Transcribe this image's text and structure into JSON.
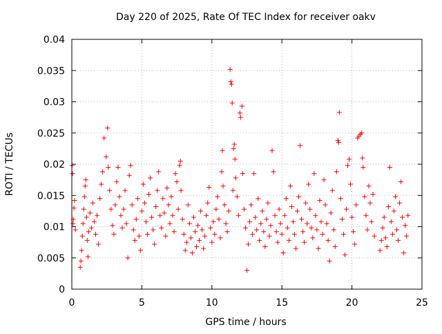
{
  "chart_data": {
    "type": "scatter",
    "title": "Day 220 of 2025, Rate Of TEC Index for receiver oakv",
    "xlabel": "GPS time / hours",
    "ylabel": "ROTI / TECUs",
    "xlim": [
      0,
      25
    ],
    "ylim": [
      0,
      0.04
    ],
    "x_ticks": [
      "0",
      "5",
      "10",
      "15",
      "20",
      "25"
    ],
    "y_ticks": [
      "0",
      "0.005",
      "0.01",
      "0.015",
      "0.02",
      "0.025",
      "0.03",
      "0.035",
      "0.04"
    ],
    "x_tick_values": [
      0,
      5,
      10,
      15,
      20,
      25
    ],
    "y_tick_values": [
      0,
      0.005,
      0.01,
      0.015,
      0.02,
      0.025,
      0.03,
      0.035,
      0.04
    ],
    "grid": true,
    "marker": "+",
    "marker_color": "#ff0000",
    "series": [
      {
        "points": [
          [
            0.02,
            0.0198
          ],
          [
            0.05,
            0.0185
          ],
          [
            0.08,
            0.0105
          ],
          [
            0.1,
            0.0112
          ],
          [
            0.15,
            0.013
          ],
          [
            0.2,
            0.0142
          ],
          [
            0.25,
            0.0095
          ],
          [
            0.6,
            0.0035
          ],
          [
            0.65,
            0.0045
          ],
          [
            0.7,
            0.0062
          ],
          [
            0.75,
            0.0085
          ],
          [
            0.8,
            0.0105
          ],
          [
            0.85,
            0.0128
          ],
          [
            0.9,
            0.0148
          ],
          [
            0.95,
            0.0165
          ],
          [
            1.0,
            0.0175
          ],
          [
            1.05,
            0.0115
          ],
          [
            1.1,
            0.0078
          ],
          [
            1.15,
            0.0052
          ],
          [
            1.2,
            0.0092
          ],
          [
            1.3,
            0.0122
          ],
          [
            1.4,
            0.0098
          ],
          [
            1.5,
            0.0138
          ],
          [
            1.6,
            0.0108
          ],
          [
            1.7,
            0.0088
          ],
          [
            1.8,
            0.0118
          ],
          [
            1.9,
            0.0072
          ],
          [
            2.0,
            0.0145
          ],
          [
            2.1,
            0.0168
          ],
          [
            2.2,
            0.0188
          ],
          [
            2.3,
            0.0242
          ],
          [
            2.45,
            0.0212
          ],
          [
            2.55,
            0.0258
          ],
          [
            2.6,
            0.0195
          ],
          [
            2.7,
            0.0158
          ],
          [
            2.8,
            0.0128
          ],
          [
            2.9,
            0.0102
          ],
          [
            3.0,
            0.0088
          ],
          [
            3.1,
            0.0135
          ],
          [
            3.2,
            0.0172
          ],
          [
            3.3,
            0.0195
          ],
          [
            3.4,
            0.0148
          ],
          [
            3.5,
            0.0118
          ],
          [
            3.6,
            0.0098
          ],
          [
            3.7,
            0.0128
          ],
          [
            3.8,
            0.0158
          ],
          [
            3.9,
            0.0105
          ],
          [
            4.0,
            0.005
          ],
          [
            4.1,
            0.0182
          ],
          [
            4.2,
            0.0198
          ],
          [
            4.3,
            0.0135
          ],
          [
            4.4,
            0.0095
          ],
          [
            4.5,
            0.0078
          ],
          [
            4.6,
            0.0112
          ],
          [
            4.7,
            0.0145
          ],
          [
            4.8,
            0.0085
          ],
          [
            4.9,
            0.0062
          ],
          [
            5.0,
            0.0125
          ],
          [
            5.1,
            0.0168
          ],
          [
            5.2,
            0.0138
          ],
          [
            5.3,
            0.0108
          ],
          [
            5.4,
            0.0088
          ],
          [
            5.5,
            0.0152
          ],
          [
            5.6,
            0.0178
          ],
          [
            5.7,
            0.0115
          ],
          [
            5.8,
            0.0095
          ],
          [
            5.9,
            0.0072
          ],
          [
            6.0,
            0.0132
          ],
          [
            6.1,
            0.0158
          ],
          [
            6.2,
            0.0188
          ],
          [
            6.3,
            0.0118
          ],
          [
            6.4,
            0.0098
          ],
          [
            6.5,
            0.0145
          ],
          [
            6.6,
            0.0122
          ],
          [
            6.7,
            0.0085
          ],
          [
            6.8,
            0.0162
          ],
          [
            6.9,
            0.0135
          ],
          [
            7.0,
            0.0105
          ],
          [
            7.1,
            0.0148
          ],
          [
            7.2,
            0.0118
          ],
          [
            7.3,
            0.0092
          ],
          [
            7.4,
            0.0185
          ],
          [
            7.5,
            0.0172
          ],
          [
            7.6,
            0.0128
          ],
          [
            7.7,
            0.0198
          ],
          [
            7.75,
            0.0205
          ],
          [
            7.8,
            0.0158
          ],
          [
            7.9,
            0.0112
          ],
          [
            8.0,
            0.0088
          ],
          [
            8.1,
            0.0062
          ],
          [
            8.2,
            0.0075
          ],
          [
            8.3,
            0.0135
          ],
          [
            8.4,
            0.0105
          ],
          [
            8.5,
            0.0082
          ],
          [
            8.6,
            0.0058
          ],
          [
            8.7,
            0.0115
          ],
          [
            8.8,
            0.0092
          ],
          [
            8.9,
            0.0068
          ],
          [
            9.0,
            0.0102
          ],
          [
            9.1,
            0.0078
          ],
          [
            9.2,
            0.0125
          ],
          [
            9.3,
            0.0095
          ],
          [
            9.4,
            0.0065
          ],
          [
            9.5,
            0.0085
          ],
          [
            9.6,
            0.0118
          ],
          [
            9.7,
            0.0138
          ],
          [
            9.8,
            0.0163
          ],
          [
            9.9,
            0.0098
          ],
          [
            10.0,
            0.0075
          ],
          [
            10.1,
            0.0108
          ],
          [
            10.2,
            0.0088
          ],
          [
            10.3,
            0.0128
          ],
          [
            10.4,
            0.0148
          ],
          [
            10.5,
            0.0112
          ],
          [
            10.6,
            0.0082
          ],
          [
            10.7,
            0.0188
          ],
          [
            10.75,
            0.0222
          ],
          [
            10.8,
            0.0165
          ],
          [
            10.9,
            0.0135
          ],
          [
            11.0,
            0.0105
          ],
          [
            11.1,
            0.0092
          ],
          [
            11.2,
            0.0125
          ],
          [
            11.3,
            0.0352
          ],
          [
            11.35,
            0.0332
          ],
          [
            11.4,
            0.0328
          ],
          [
            11.45,
            0.0298
          ],
          [
            11.5,
            0.0158
          ],
          [
            11.55,
            0.0225
          ],
          [
            11.6,
            0.0232
          ],
          [
            11.65,
            0.0208
          ],
          [
            11.7,
            0.0178
          ],
          [
            11.8,
            0.0148
          ],
          [
            11.9,
            0.0118
          ],
          [
            12.0,
            0.0282
          ],
          [
            12.05,
            0.0275
          ],
          [
            12.15,
            0.0293
          ],
          [
            12.2,
            0.0185
          ],
          [
            12.3,
            0.0128
          ],
          [
            12.4,
            0.0098
          ],
          [
            12.5,
            0.003
          ],
          [
            12.6,
            0.0072
          ],
          [
            12.7,
            0.0108
          ],
          [
            12.8,
            0.0135
          ],
          [
            12.9,
            0.0088
          ],
          [
            13.0,
            0.0185
          ],
          [
            13.1,
            0.0115
          ],
          [
            13.2,
            0.0095
          ],
          [
            13.3,
            0.0145
          ],
          [
            13.4,
            0.0078
          ],
          [
            13.5,
            0.0105
          ],
          [
            13.6,
            0.0125
          ],
          [
            13.7,
            0.0092
          ],
          [
            13.8,
            0.0068
          ],
          [
            13.9,
            0.0112
          ],
          [
            14.0,
            0.0138
          ],
          [
            14.1,
            0.0085
          ],
          [
            14.2,
            0.0102
          ],
          [
            14.3,
            0.0222
          ],
          [
            14.4,
            0.0188
          ],
          [
            14.5,
            0.0118
          ],
          [
            14.6,
            0.0092
          ],
          [
            14.7,
            0.0075
          ],
          [
            14.8,
            0.0128
          ],
          [
            14.9,
            0.0105
          ],
          [
            15.0,
            0.0088
          ],
          [
            15.1,
            0.0058
          ],
          [
            15.2,
            0.0118
          ],
          [
            15.3,
            0.0145
          ],
          [
            15.4,
            0.0098
          ],
          [
            15.5,
            0.0078
          ],
          [
            15.6,
            0.0165
          ],
          [
            15.7,
            0.0132
          ],
          [
            15.8,
            0.0108
          ],
          [
            15.9,
            0.0088
          ],
          [
            16.0,
            0.0065
          ],
          [
            16.1,
            0.0125
          ],
          [
            16.2,
            0.0148
          ],
          [
            16.3,
            0.023
          ],
          [
            16.4,
            0.0112
          ],
          [
            16.5,
            0.0092
          ],
          [
            16.6,
            0.0075
          ],
          [
            16.7,
            0.0138
          ],
          [
            16.8,
            0.0105
          ],
          [
            16.9,
            0.0168
          ],
          [
            17.0,
            0.0128
          ],
          [
            17.1,
            0.0098
          ],
          [
            17.2,
            0.0082
          ],
          [
            17.3,
            0.0185
          ],
          [
            17.4,
            0.0118
          ],
          [
            17.5,
            0.0095
          ],
          [
            17.6,
            0.0065
          ],
          [
            17.7,
            0.0142
          ],
          [
            17.8,
            0.0108
          ],
          [
            17.9,
            0.0088
          ],
          [
            18.0,
            0.0175
          ],
          [
            18.1,
            0.0135
          ],
          [
            18.2,
            0.0105
          ],
          [
            18.3,
            0.0078
          ],
          [
            18.4,
            0.0045
          ],
          [
            18.5,
            0.0122
          ],
          [
            18.6,
            0.0158
          ],
          [
            18.7,
            0.0095
          ],
          [
            18.8,
            0.0068
          ],
          [
            18.9,
            0.0188
          ],
          [
            19.0,
            0.0238
          ],
          [
            19.05,
            0.0235
          ],
          [
            19.1,
            0.0283
          ],
          [
            19.2,
            0.0145
          ],
          [
            19.3,
            0.0112
          ],
          [
            19.4,
            0.0088
          ],
          [
            19.5,
            0.0055
          ],
          [
            19.6,
            0.0128
          ],
          [
            19.7,
            0.0198
          ],
          [
            19.8,
            0.0208
          ],
          [
            19.9,
            0.0168
          ],
          [
            20.0,
            0.0115
          ],
          [
            20.1,
            0.0092
          ],
          [
            20.2,
            0.0072
          ],
          [
            20.3,
            0.0135
          ],
          [
            20.4,
            0.0242
          ],
          [
            20.5,
            0.0245
          ],
          [
            20.6,
            0.0248
          ],
          [
            20.7,
            0.025
          ],
          [
            20.75,
            0.021
          ],
          [
            20.8,
            0.0195
          ],
          [
            20.9,
            0.0148
          ],
          [
            21.0,
            0.0118
          ],
          [
            21.1,
            0.0095
          ],
          [
            21.2,
            0.0165
          ],
          [
            21.3,
            0.0138
          ],
          [
            21.4,
            0.0108
          ],
          [
            21.5,
            0.0152
          ],
          [
            21.6,
            0.0085
          ],
          [
            22.0,
            0.0062
          ],
          [
            22.1,
            0.0078
          ],
          [
            22.2,
            0.0098
          ],
          [
            22.3,
            0.0115
          ],
          [
            22.4,
            0.0082
          ],
          [
            22.5,
            0.0068
          ],
          [
            22.6,
            0.0132
          ],
          [
            22.7,
            0.0195
          ],
          [
            22.8,
            0.0108
          ],
          [
            22.9,
            0.0088
          ],
          [
            23.0,
            0.0125
          ],
          [
            23.1,
            0.0148
          ],
          [
            23.2,
            0.0095
          ],
          [
            23.3,
            0.0078
          ],
          [
            23.4,
            0.0138
          ],
          [
            23.5,
            0.0172
          ],
          [
            23.6,
            0.0115
          ],
          [
            23.7,
            0.0058
          ],
          [
            23.8,
            0.0102
          ],
          [
            23.9,
            0.0085
          ],
          [
            24.0,
            0.0118
          ]
        ]
      }
    ]
  }
}
